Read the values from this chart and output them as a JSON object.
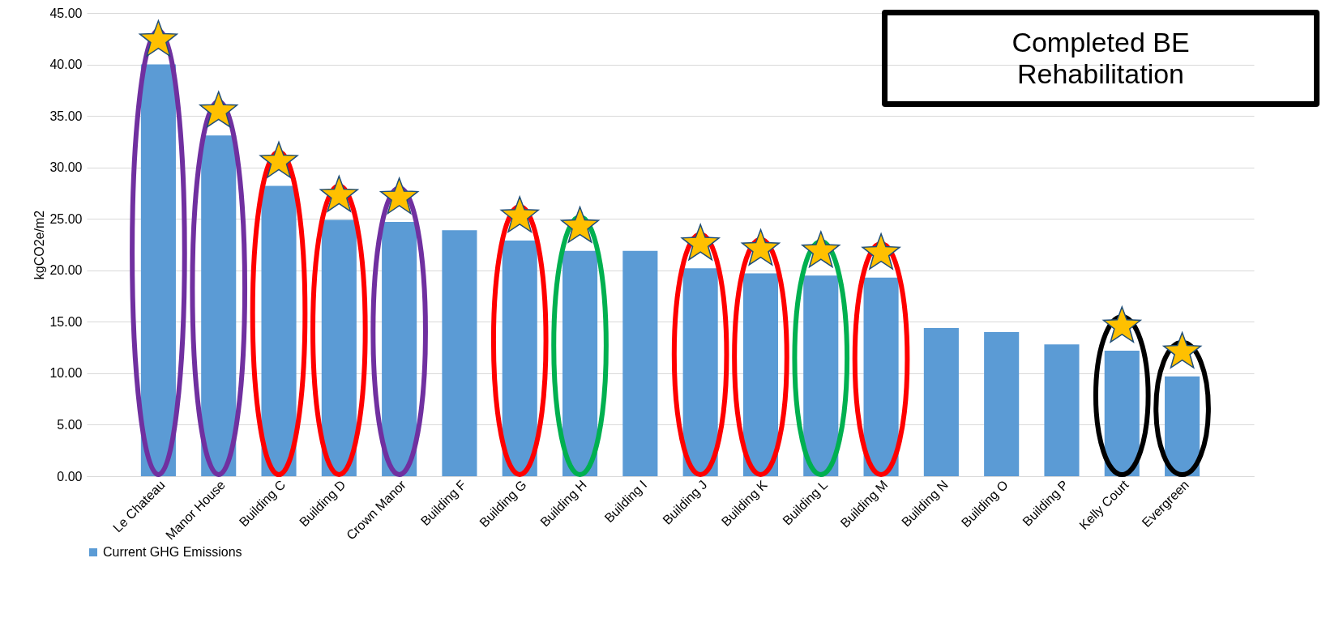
{
  "chart_data": {
    "type": "bar",
    "ylabel": "kgCO2e/m2",
    "categories": [
      "Le Chateau",
      "Manor House",
      "Building C",
      "Building D",
      "Crown Manor",
      "Building F",
      "Building G",
      "Building H",
      "Building I",
      "Building J",
      "Building K",
      "Building L",
      "Building M",
      "Building N",
      "Building O",
      "Building P",
      "Kelly Court",
      "Evergreen"
    ],
    "series": [
      {
        "name": "Current GHG Emissions",
        "color": "#5b9bd5",
        "values": [
          40.0,
          33.1,
          28.2,
          24.9,
          24.7,
          23.9,
          22.9,
          21.9,
          21.9,
          20.2,
          19.7,
          19.5,
          19.3,
          14.4,
          14.0,
          12.8,
          12.2,
          9.7
        ]
      }
    ],
    "ylim": [
      0,
      45
    ],
    "yticks": [
      {
        "value": 0,
        "label": "0.00"
      },
      {
        "value": 5,
        "label": "5.00"
      },
      {
        "value": 10,
        "label": "10.00"
      },
      {
        "value": 15,
        "label": "15.00"
      },
      {
        "value": 20,
        "label": "20.00"
      },
      {
        "value": 25,
        "label": "25.00"
      },
      {
        "value": 30,
        "label": "30.00"
      },
      {
        "value": 35,
        "label": "35.00"
      },
      {
        "value": 40,
        "label": "40.00"
      },
      {
        "value": 45,
        "label": "45.00"
      }
    ],
    "grid": "y",
    "legend": "bottom",
    "annotations": [
      "Completed BE Rehabilitation"
    ]
  }
}
